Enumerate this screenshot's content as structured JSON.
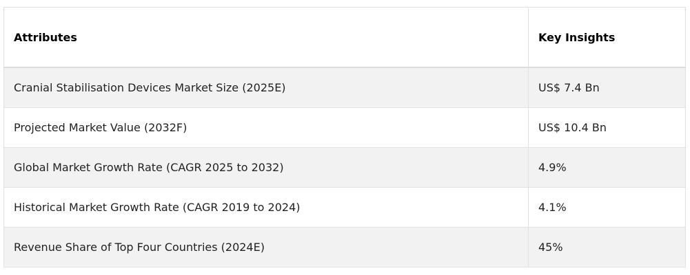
{
  "table": {
    "header": [
      "Attributes",
      "Key Insights"
    ],
    "rows": [
      [
        "Cranial Stabilisation Devices Market Size (2025E)",
        "US$ 7.4 Bn"
      ],
      [
        "Projected Market Value (2032F)",
        "US$ 10.4 Bn"
      ],
      [
        "Global Market Growth Rate (CAGR 2025 to 2032)",
        "4.9%"
      ],
      [
        "Historical Market Growth Rate (CAGR 2019 to 2024)",
        "4.1%"
      ],
      [
        "Revenue Share of Top Four Countries (2024E)",
        "45%"
      ]
    ]
  }
}
